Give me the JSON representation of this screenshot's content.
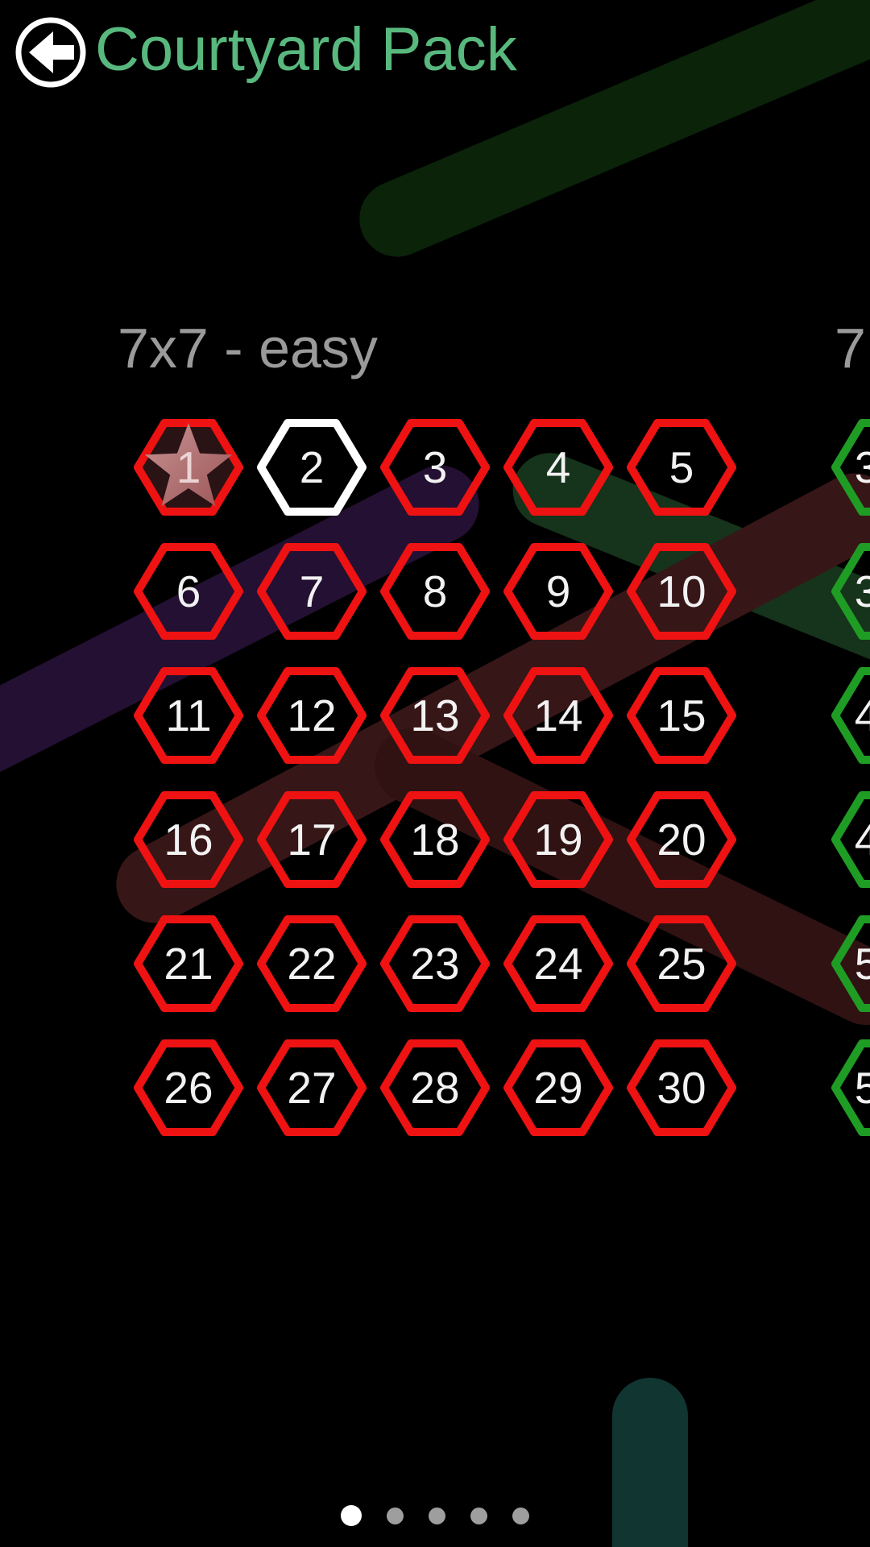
{
  "header": {
    "title": "Courtyard Pack",
    "title_color": "#58b87e",
    "back_icon": "arrow-left-circle"
  },
  "page": {
    "section_title": "7x7 - easy",
    "next_section_title_partial": "7",
    "completed_icon": "star",
    "levels": [
      {
        "label": "1",
        "state": "completed"
      },
      {
        "label": "2",
        "state": "current"
      },
      {
        "label": "3",
        "state": "locked"
      },
      {
        "label": "4",
        "state": "locked"
      },
      {
        "label": "5",
        "state": "locked"
      },
      {
        "label": "6",
        "state": "locked"
      },
      {
        "label": "7",
        "state": "locked"
      },
      {
        "label": "8",
        "state": "locked"
      },
      {
        "label": "9",
        "state": "locked"
      },
      {
        "label": "10",
        "state": "locked"
      },
      {
        "label": "11",
        "state": "locked"
      },
      {
        "label": "12",
        "state": "locked"
      },
      {
        "label": "13",
        "state": "locked"
      },
      {
        "label": "14",
        "state": "locked"
      },
      {
        "label": "15",
        "state": "locked"
      },
      {
        "label": "16",
        "state": "locked"
      },
      {
        "label": "17",
        "state": "locked"
      },
      {
        "label": "18",
        "state": "locked"
      },
      {
        "label": "19",
        "state": "locked"
      },
      {
        "label": "20",
        "state": "locked"
      },
      {
        "label": "21",
        "state": "locked"
      },
      {
        "label": "22",
        "state": "locked"
      },
      {
        "label": "23",
        "state": "locked"
      },
      {
        "label": "24",
        "state": "locked"
      },
      {
        "label": "25",
        "state": "locked"
      },
      {
        "label": "26",
        "state": "locked"
      },
      {
        "label": "27",
        "state": "locked"
      },
      {
        "label": "28",
        "state": "locked"
      },
      {
        "label": "29",
        "state": "locked"
      },
      {
        "label": "30",
        "state": "locked"
      }
    ],
    "next_page_levels_partial": [
      {
        "visible_digit": "3"
      },
      {
        "visible_digit": "3"
      },
      {
        "visible_digit": "4"
      },
      {
        "visible_digit": "4"
      },
      {
        "visible_digit": "5"
      },
      {
        "visible_digit": "5"
      }
    ]
  },
  "pagination": {
    "dot_count": 5,
    "active_index": 0
  },
  "colors": {
    "background": "#000000",
    "level_locked_border": "#ee1212",
    "level_current_border": "#ffffff",
    "level_completed_border": "#ee1212",
    "next_page_border": "#1f9c24",
    "section_title_color": "#9a9a9a",
    "star_color": "#b06e6f",
    "teal_bar": "#113531"
  }
}
